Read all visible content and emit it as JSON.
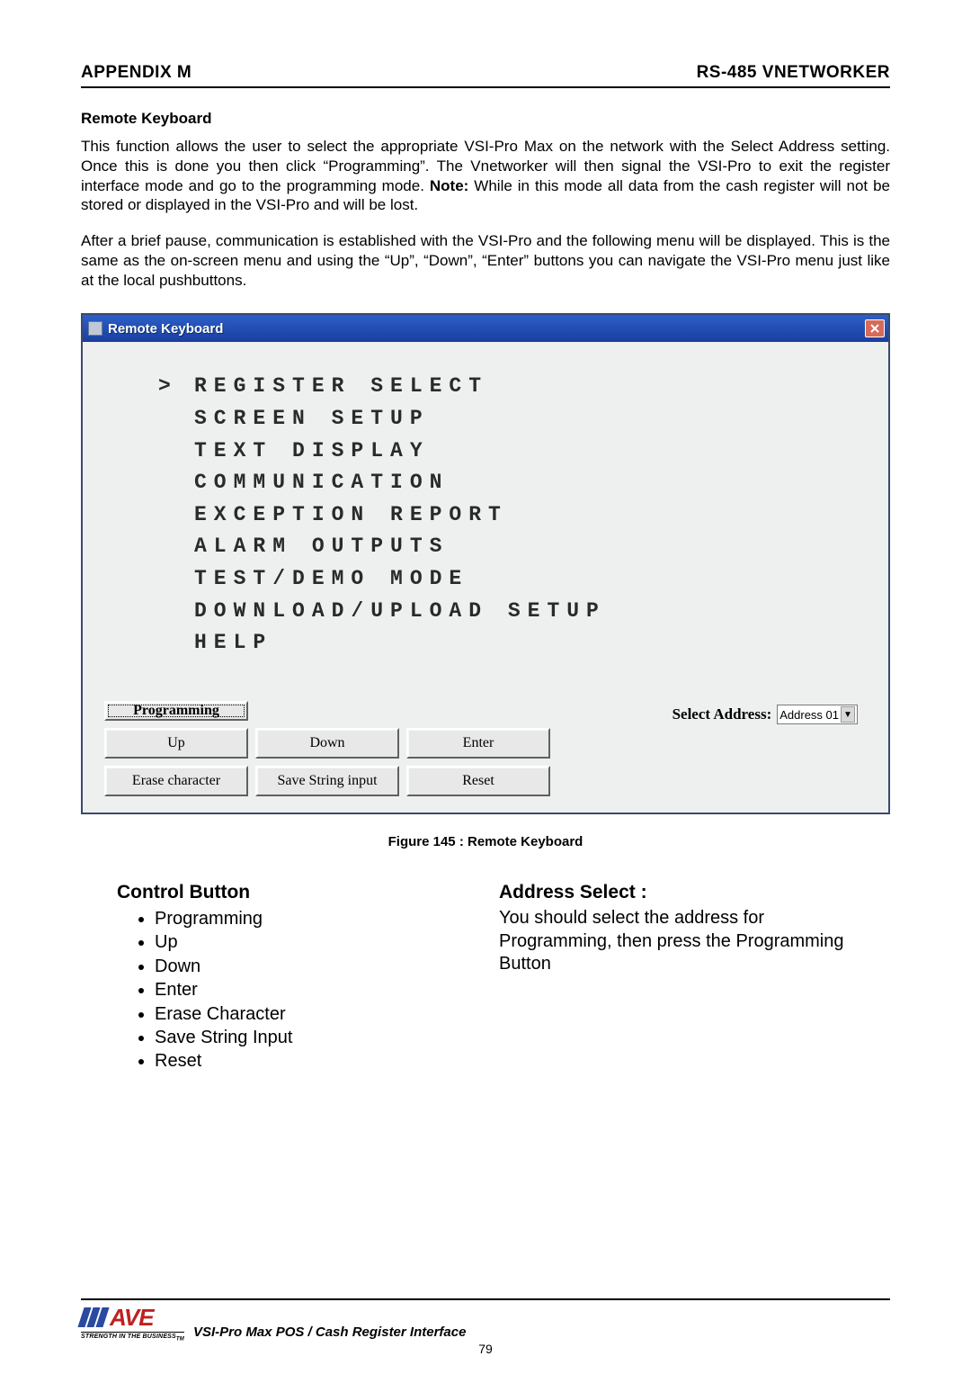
{
  "header": {
    "left": "APPENDIX M",
    "right": "RS-485 VNETWORKER"
  },
  "section_title": "Remote Keyboard",
  "para1_a": "This function allows the user to select the appropriate VSI-Pro Max on the network with the Select Address setting. Once this is done you then click “Programming”. The Vnetworker will then signal the VSI-Pro to exit the register interface mode and go to the programming mode. ",
  "para1_note_label": "Note:",
  "para1_b": " While in this mode all data from the cash register will not be stored or displayed in the VSI-Pro and will be lost.",
  "para2": "After a brief pause, communication is established with the VSI-Pro and the following menu will be displayed. This is the same as the on-screen menu and using the “Up”, “Down”, “Enter”  buttons you can navigate the VSI-Pro menu just like at the local pushbuttons.",
  "dialog": {
    "title": "Remote Keyboard",
    "menu_items": [
      "REGISTER SELECT",
      "SCREEN SETUP",
      "TEXT DISPLAY",
      "COMMUNICATION",
      "EXCEPTION REPORT",
      "ALARM OUTPUTS",
      "TEST/DEMO MODE",
      "DOWNLOAD/UPLOAD SETUP",
      "HELP"
    ],
    "cursor_index": 0,
    "buttons": {
      "programming": "Programming",
      "up": "Up",
      "down": "Down",
      "enter": "Enter",
      "erase": "Erase character",
      "save": "Save String input",
      "reset": "Reset"
    },
    "addr_label": "Select Address:",
    "addr_value": "Address 01"
  },
  "figure_caption": "Figure 145 : Remote Keyboard",
  "left_col": {
    "title": "Control Button",
    "items": [
      "Programming",
      "Up",
      "Down",
      "Enter",
      "Erase Character",
      "Save String Input",
      "Reset"
    ]
  },
  "right_col": {
    "title": "Address Select :",
    "text": "You should select the address for Programming, then press the Programming Button"
  },
  "footer": {
    "logo_text": "AVE",
    "logo_tag": "STRENGTH IN THE BUSINESS",
    "tm": "TM",
    "title": "VSI-Pro Max  POS / Cash Register Interface",
    "page": "79"
  }
}
